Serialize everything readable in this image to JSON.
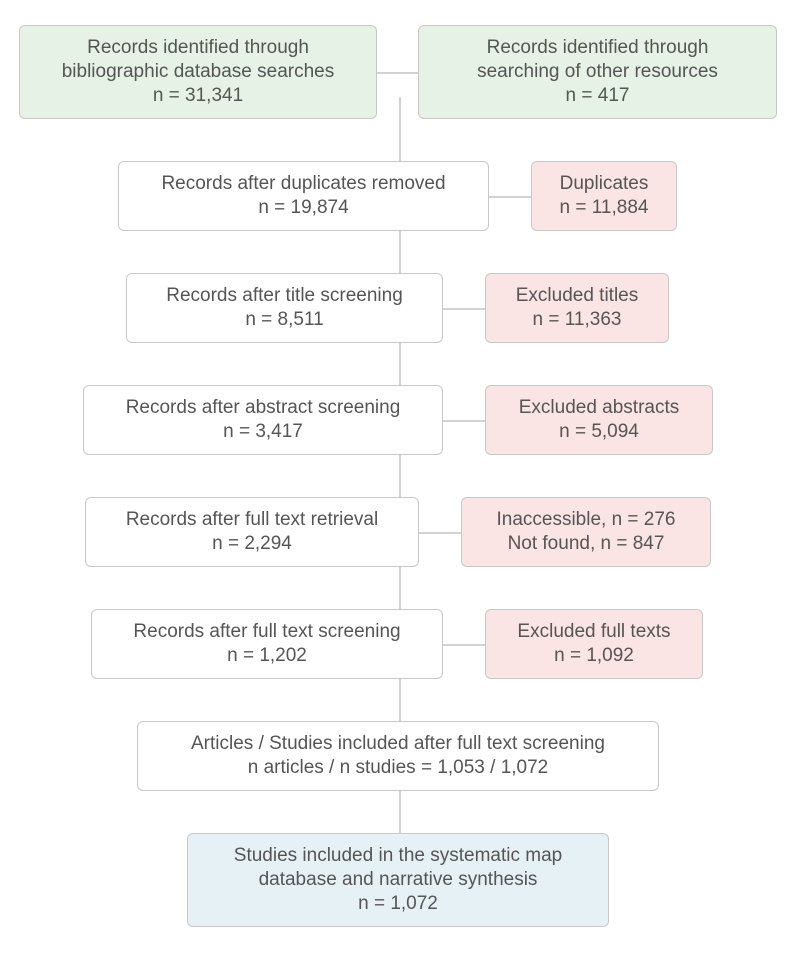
{
  "colors": {
    "identification_fill": "#e6f2e5",
    "exclusion_fill": "#fbe5e4",
    "final_fill": "#e6f1f6",
    "border": "#c8c8c8",
    "connector": "#c4c4c4",
    "text": "#555555"
  },
  "identification": {
    "database": {
      "line1": "Records identified through",
      "line2": "bibliographic database searches",
      "count": "n = 31,341"
    },
    "other": {
      "line1": "Records identified through",
      "line2": "searching of other resources",
      "count": "n = 417"
    }
  },
  "stages": [
    {
      "label": "Records after duplicates removed",
      "count": "n = 19,874",
      "excluded": {
        "line1": "Duplicates",
        "line2": "n = 11,884"
      }
    },
    {
      "label": "Records after title screening",
      "count": "n = 8,511",
      "excluded": {
        "line1": "Excluded titles",
        "line2": "n = 11,363"
      }
    },
    {
      "label": "Records after abstract screening",
      "count": "n = 3,417",
      "excluded": {
        "line1": "Excluded abstracts",
        "line2": "n = 5,094"
      }
    },
    {
      "label": "Records after full text retrieval",
      "count": "n = 2,294",
      "excluded": {
        "line1": "Inaccessible, n = 276",
        "line2": "Not found, n = 847"
      }
    },
    {
      "label": "Records after full text screening",
      "count": "n = 1,202",
      "excluded": {
        "line1": "Excluded full texts",
        "line2": "n = 1,092"
      }
    }
  ],
  "included": {
    "line1": "Articles / Studies included after full text screening",
    "line2": "n articles / n studies = 1,053 / 1,072"
  },
  "final": {
    "line1": "Studies included in the systematic map",
    "line2": "database and narrative synthesis",
    "count": "n = 1,072"
  }
}
